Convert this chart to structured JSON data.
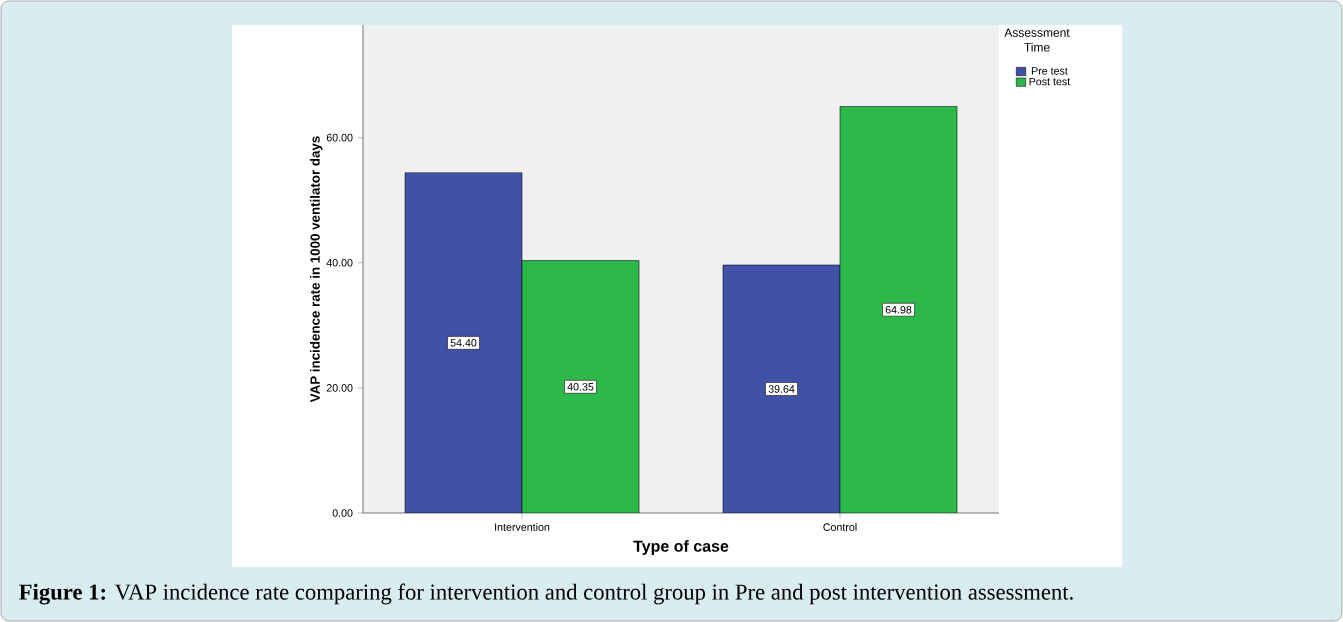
{
  "chart_data": {
    "type": "bar",
    "xlabel": "Type of case",
    "ylabel": "VAP incidence rate in 1000 ventilator days",
    "legend_title": "Assessment Time",
    "categories": [
      "Intervention",
      "Control"
    ],
    "series": [
      {
        "name": "Pre test",
        "color": "#3f52a8",
        "values": [
          54.4,
          39.64
        ],
        "value_labels": [
          "54.40",
          "39.64"
        ]
      },
      {
        "name": "Post test",
        "color": "#2db84a",
        "values": [
          40.35,
          64.98
        ],
        "value_labels": [
          "40.35",
          "64.98"
        ]
      }
    ],
    "ylim": [
      0,
      78
    ],
    "yticks": [
      {
        "value": 0,
        "label": "0.00"
      },
      {
        "value": 20,
        "label": "20.00"
      },
      {
        "value": 40,
        "label": "40.00"
      },
      {
        "value": 60,
        "label": "60.00"
      }
    ],
    "legend": "top right",
    "grid": false,
    "annotations": [
      "**Figure 1:** VAP incidence rate comparing for intervention and control group in Pre and post intervention assessment."
    ]
  }
}
